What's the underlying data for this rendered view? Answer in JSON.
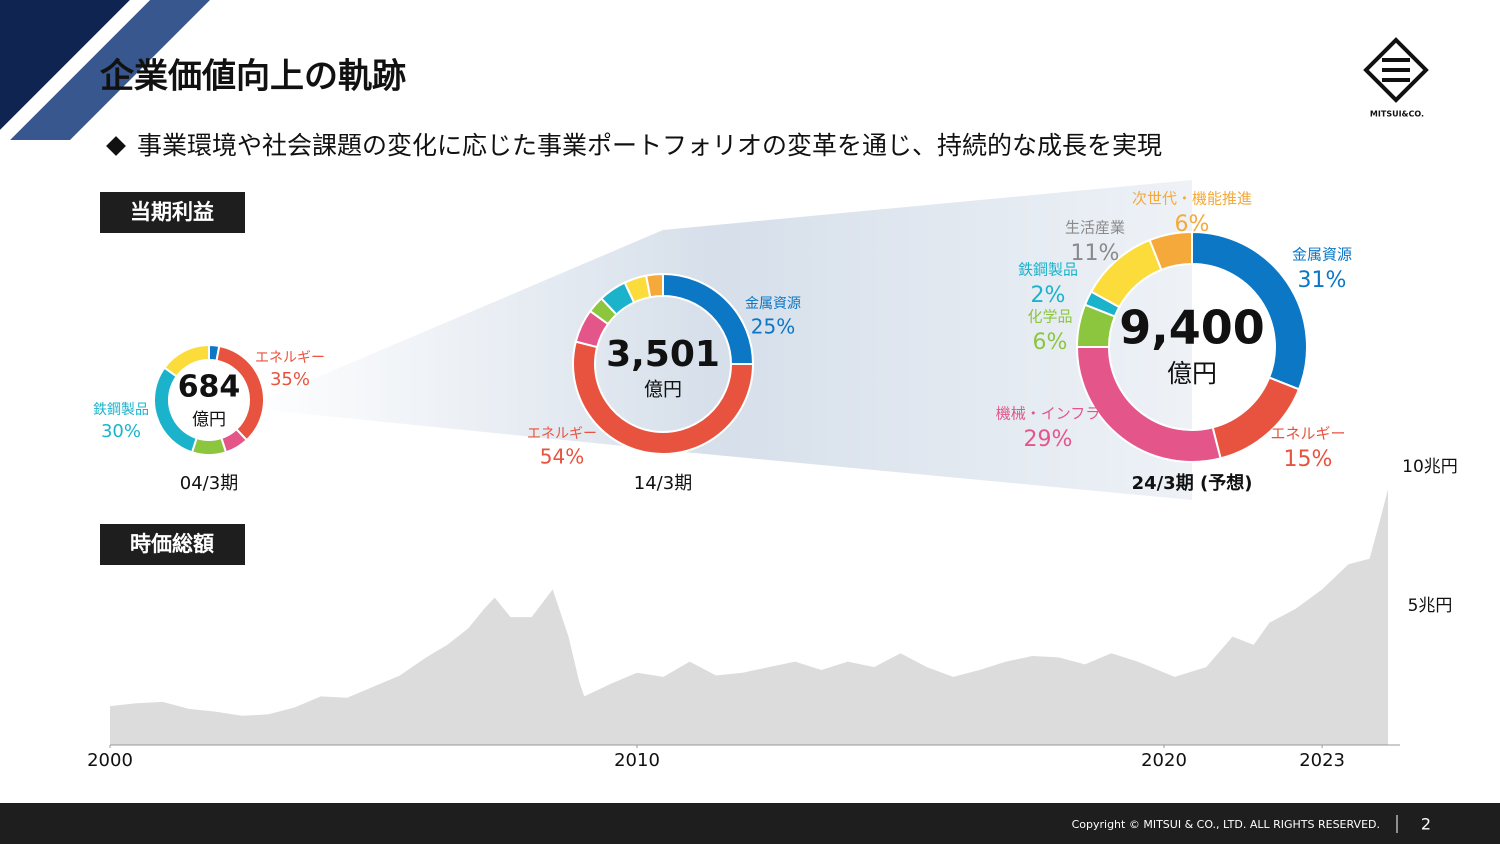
{
  "header": {
    "title": "企業価値向上の軌跡",
    "subtitle": "事業環境や社会課題の変化に応じた事業ポートフォリオの変革を通じ、持続的な成長を実現",
    "logo": "MITSUI&CO."
  },
  "sections": [
    "当期利益",
    "時価総額"
  ],
  "footer": {
    "copyright": "Copyright © MITSUI & CO., LTD. ALL RIGHTS RESERVED.",
    "page": "2"
  },
  "chart_data": [
    {
      "type": "pie",
      "center_label": "684",
      "center_unit": "億円",
      "period": "04/3期",
      "categories": [
        null,
        "エネルギー",
        null,
        null,
        "鉄鋼製品",
        null
      ],
      "values": [
        3,
        35,
        7,
        10,
        30,
        15
      ],
      "value_labels": [
        null,
        "35%",
        null,
        null,
        "30%",
        null
      ],
      "colors": [
        "#0b77c5",
        "#e8533f",
        "#e4568a",
        "#8cc63f",
        "#1bb3cc",
        "#fbdc3b"
      ],
      "label_colors": [
        "#0b77c5",
        "#e8533f",
        "#e4568a",
        "#8cc63f",
        "#1bb3cc",
        "#fbdc3b"
      ]
    },
    {
      "type": "pie",
      "center_label": "3,501",
      "center_unit": "億円",
      "period": "14/3期",
      "categories": [
        "金属資源",
        "エネルギー",
        null,
        null,
        null,
        null,
        null
      ],
      "values": [
        25,
        54,
        6,
        3,
        5,
        4,
        3
      ],
      "value_labels": [
        "25%",
        "54%",
        null,
        null,
        null,
        null,
        null
      ],
      "colors": [
        "#0b77c5",
        "#e8533f",
        "#e4568a",
        "#8cc63f",
        "#1bb3cc",
        "#fbdc3b",
        "#f4a93a"
      ],
      "label_colors": [
        "#0b77c5",
        "#e8533f",
        "#e4568a",
        "#8cc63f",
        "#1bb3cc",
        "#fbdc3b",
        "#f4a93a"
      ]
    },
    {
      "type": "pie",
      "center_label": "9,400",
      "center_unit": "億円",
      "period": "24/3期 (予想)",
      "categories": [
        "金属資源",
        "エネルギー",
        "機械・インフラ",
        "化学品",
        "鉄鋼製品",
        "生活産業",
        "次世代・機能推進"
      ],
      "values": [
        31,
        15,
        29,
        6,
        2,
        11,
        6
      ],
      "value_labels": [
        "31%",
        "15%",
        "29%",
        "6%",
        "2%",
        "11%",
        "6%"
      ],
      "colors": [
        "#0b77c5",
        "#e8533f",
        "#e4568a",
        "#8cc63f",
        "#1bb3cc",
        "#fbdc3b",
        "#f4a93a"
      ],
      "label_colors": [
        "#0b77c5",
        "#e8533f",
        "#e4568a",
        "#8cc63f",
        "#1bb3cc",
        "#8a8a8a",
        "#f4a93a"
      ]
    },
    {
      "type": "area",
      "color": "#dcdcdc",
      "x": [
        2000,
        2000.5,
        2001,
        2001.5,
        2002,
        2002.5,
        2003,
        2003.5,
        2004,
        2004.5,
        2005,
        2005.5,
        2006,
        2006.4,
        2006.8,
        2007.1,
        2007.3,
        2007.6,
        2008,
        2008.4,
        2008.7,
        2008.9,
        2009,
        2009.5,
        2010,
        2010.5,
        2011,
        2011.5,
        2012,
        2012.5,
        2013,
        2013.5,
        2014,
        2014.5,
        2015,
        2015.5,
        2016,
        2016.5,
        2017,
        2017.5,
        2018,
        2018.5,
        2019,
        2019.5,
        2020.2,
        2020.8,
        2021.3,
        2021.7,
        2022,
        2022.5,
        2023,
        2023.5,
        2023.9,
        2024.1,
        2024.25
      ],
      "values": [
        1.4,
        1.5,
        1.55,
        1.3,
        1.2,
        1.05,
        1.1,
        1.35,
        1.75,
        1.7,
        2.1,
        2.5,
        3.15,
        3.6,
        4.2,
        4.9,
        5.3,
        4.6,
        4.6,
        5.6,
        3.9,
        2.3,
        1.75,
        2.2,
        2.6,
        2.45,
        3.0,
        2.5,
        2.6,
        2.8,
        3.0,
        2.7,
        3.0,
        2.8,
        3.3,
        2.8,
        2.45,
        2.7,
        3.0,
        3.2,
        3.15,
        2.9,
        3.3,
        3.0,
        2.45,
        2.8,
        3.9,
        3.6,
        4.4,
        4.9,
        5.6,
        6.5,
        6.7,
        8.1,
        9.2
      ],
      "xlim": [
        2000,
        2024.3
      ],
      "ylim": [
        0,
        10
      ],
      "xticks": [
        2000,
        2010,
        2020,
        2023
      ],
      "yticks": [
        {
          "value": 5,
          "label": "5兆円"
        },
        {
          "value": 10,
          "label": "10兆円"
        }
      ]
    }
  ]
}
